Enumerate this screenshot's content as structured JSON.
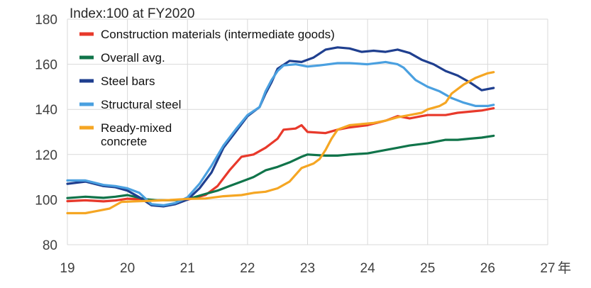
{
  "chart_data": {
    "type": "line",
    "ylabel": "Index:100 at FY2020",
    "xunit": "年",
    "xlim": [
      19,
      27
    ],
    "ylim": [
      80,
      180
    ],
    "y_ticks": [
      80,
      100,
      120,
      140,
      160,
      180
    ],
    "x_ticks": [
      19,
      20,
      21,
      22,
      23,
      24,
      25,
      26,
      27
    ],
    "x_tick_labels": [
      "19",
      "20",
      "21",
      "22",
      "23",
      "24",
      "25",
      "26",
      "27"
    ],
    "grid": "both",
    "legend_position": "top-left",
    "series": [
      {
        "name": "Construction materials (intermediate goods)",
        "color": "#e8392b",
        "points": [
          [
            19.0,
            99.3
          ],
          [
            19.3,
            99.7
          ],
          [
            19.6,
            99.2
          ],
          [
            19.8,
            99.6
          ],
          [
            20.0,
            100.4
          ],
          [
            20.3,
            100.0
          ],
          [
            20.5,
            99.7
          ],
          [
            20.8,
            99.8
          ],
          [
            21.0,
            100.0
          ],
          [
            21.3,
            102.0
          ],
          [
            21.5,
            106.0
          ],
          [
            21.7,
            113.0
          ],
          [
            21.9,
            119.0
          ],
          [
            22.1,
            120.0
          ],
          [
            22.3,
            123.0
          ],
          [
            22.5,
            127.0
          ],
          [
            22.6,
            131.0
          ],
          [
            22.8,
            131.5
          ],
          [
            22.9,
            133.0
          ],
          [
            23.0,
            130.0
          ],
          [
            23.3,
            129.5
          ],
          [
            23.5,
            131.0
          ],
          [
            23.7,
            132.0
          ],
          [
            24.0,
            133.0
          ],
          [
            24.3,
            135.0
          ],
          [
            24.5,
            137.0
          ],
          [
            24.7,
            136.0
          ],
          [
            24.9,
            137.0
          ],
          [
            25.0,
            137.5
          ],
          [
            25.3,
            137.5
          ],
          [
            25.5,
            138.5
          ],
          [
            25.7,
            139.0
          ],
          [
            25.9,
            139.5
          ],
          [
            26.1,
            140.5
          ]
        ]
      },
      {
        "name": "Overall avg.",
        "color": "#10744a",
        "points": [
          [
            19.0,
            100.7
          ],
          [
            19.3,
            101.3
          ],
          [
            19.6,
            100.8
          ],
          [
            19.8,
            101.3
          ],
          [
            20.0,
            102.0
          ],
          [
            20.3,
            100.2
          ],
          [
            20.5,
            99.7
          ],
          [
            20.8,
            99.8
          ],
          [
            21.0,
            100.2
          ],
          [
            21.3,
            102.5
          ],
          [
            21.5,
            104.0
          ],
          [
            21.7,
            106.0
          ],
          [
            21.9,
            108.0
          ],
          [
            22.1,
            110.0
          ],
          [
            22.3,
            113.0
          ],
          [
            22.5,
            114.5
          ],
          [
            22.7,
            116.5
          ],
          [
            22.9,
            119.0
          ],
          [
            23.0,
            120.0
          ],
          [
            23.3,
            119.5
          ],
          [
            23.5,
            119.5
          ],
          [
            23.7,
            120.0
          ],
          [
            24.0,
            120.5
          ],
          [
            24.3,
            122.0
          ],
          [
            24.5,
            123.0
          ],
          [
            24.7,
            124.0
          ],
          [
            25.0,
            125.0
          ],
          [
            25.3,
            126.5
          ],
          [
            25.5,
            126.5
          ],
          [
            25.7,
            127.0
          ],
          [
            25.9,
            127.5
          ],
          [
            26.1,
            128.3
          ]
        ]
      },
      {
        "name": "Steel bars",
        "color": "#1f3f8f",
        "points": [
          [
            19.0,
            107.0
          ],
          [
            19.3,
            108.0
          ],
          [
            19.6,
            106.0
          ],
          [
            19.8,
            105.5
          ],
          [
            20.0,
            104.0
          ],
          [
            20.2,
            101.0
          ],
          [
            20.4,
            97.5
          ],
          [
            20.6,
            97.0
          ],
          [
            20.8,
            98.0
          ],
          [
            21.0,
            100.0
          ],
          [
            21.2,
            105.0
          ],
          [
            21.4,
            112.0
          ],
          [
            21.6,
            123.0
          ],
          [
            21.8,
            130.0
          ],
          [
            22.0,
            137.0
          ],
          [
            22.2,
            141.0
          ],
          [
            22.3,
            147.0
          ],
          [
            22.4,
            152.0
          ],
          [
            22.5,
            158.0
          ],
          [
            22.7,
            161.5
          ],
          [
            22.9,
            161.0
          ],
          [
            23.1,
            163.0
          ],
          [
            23.3,
            166.5
          ],
          [
            23.5,
            167.5
          ],
          [
            23.7,
            167.0
          ],
          [
            23.9,
            165.5
          ],
          [
            24.1,
            166.0
          ],
          [
            24.3,
            165.5
          ],
          [
            24.5,
            166.5
          ],
          [
            24.7,
            165.0
          ],
          [
            24.9,
            162.0
          ],
          [
            25.1,
            160.0
          ],
          [
            25.3,
            157.0
          ],
          [
            25.5,
            155.0
          ],
          [
            25.7,
            152.0
          ],
          [
            25.9,
            148.5
          ],
          [
            26.0,
            149.0
          ],
          [
            26.1,
            149.5
          ]
        ]
      },
      {
        "name": "Structural steel",
        "color": "#4aa0e0",
        "points": [
          [
            19.0,
            108.5
          ],
          [
            19.3,
            108.5
          ],
          [
            19.6,
            106.5
          ],
          [
            19.8,
            106.0
          ],
          [
            20.0,
            105.0
          ],
          [
            20.2,
            103.0
          ],
          [
            20.4,
            98.0
          ],
          [
            20.6,
            97.5
          ],
          [
            20.8,
            98.5
          ],
          [
            21.0,
            101.0
          ],
          [
            21.2,
            107.0
          ],
          [
            21.4,
            115.0
          ],
          [
            21.6,
            124.0
          ],
          [
            21.8,
            131.0
          ],
          [
            22.0,
            137.5
          ],
          [
            22.2,
            141.0
          ],
          [
            22.3,
            148.0
          ],
          [
            22.4,
            153.0
          ],
          [
            22.5,
            157.0
          ],
          [
            22.6,
            159.5
          ],
          [
            22.8,
            160.0
          ],
          [
            23.0,
            159.0
          ],
          [
            23.2,
            159.5
          ],
          [
            23.5,
            160.5
          ],
          [
            23.7,
            160.5
          ],
          [
            24.0,
            160.0
          ],
          [
            24.3,
            161.0
          ],
          [
            24.5,
            160.0
          ],
          [
            24.6,
            158.5
          ],
          [
            24.8,
            153.0
          ],
          [
            25.0,
            150.0
          ],
          [
            25.2,
            148.0
          ],
          [
            25.4,
            145.0
          ],
          [
            25.6,
            143.0
          ],
          [
            25.8,
            141.5
          ],
          [
            26.0,
            141.5
          ],
          [
            26.1,
            142.0
          ]
        ]
      },
      {
        "name": "Ready-mixed\nconcrete",
        "color": "#f5a623",
        "points": [
          [
            19.0,
            94.0
          ],
          [
            19.3,
            94.0
          ],
          [
            19.5,
            95.0
          ],
          [
            19.7,
            96.0
          ],
          [
            19.9,
            99.0
          ],
          [
            20.1,
            99.2
          ],
          [
            20.4,
            99.5
          ],
          [
            20.7,
            99.8
          ],
          [
            21.0,
            100.3
          ],
          [
            21.3,
            100.5
          ],
          [
            21.6,
            101.5
          ],
          [
            21.9,
            102.0
          ],
          [
            22.1,
            103.0
          ],
          [
            22.3,
            103.5
          ],
          [
            22.5,
            105.0
          ],
          [
            22.7,
            108.0
          ],
          [
            22.9,
            114.0
          ],
          [
            23.1,
            116.0
          ],
          [
            23.2,
            118.0
          ],
          [
            23.3,
            122.0
          ],
          [
            23.4,
            127.0
          ],
          [
            23.5,
            131.0
          ],
          [
            23.7,
            133.0
          ],
          [
            23.9,
            133.5
          ],
          [
            24.1,
            134.0
          ],
          [
            24.3,
            135.0
          ],
          [
            24.5,
            136.5
          ],
          [
            24.7,
            137.5
          ],
          [
            24.9,
            138.5
          ],
          [
            25.0,
            140.0
          ],
          [
            25.2,
            141.5
          ],
          [
            25.3,
            143.0
          ],
          [
            25.4,
            147.0
          ],
          [
            25.6,
            151.0
          ],
          [
            25.8,
            154.0
          ],
          [
            25.9,
            155.0
          ],
          [
            26.0,
            156.0
          ],
          [
            26.1,
            156.5
          ]
        ]
      }
    ]
  }
}
